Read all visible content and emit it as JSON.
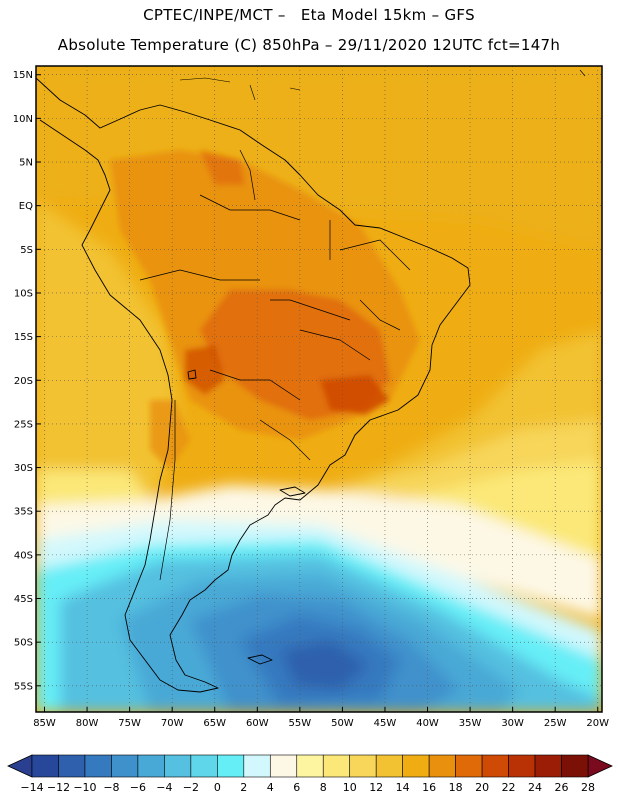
{
  "header": {
    "line1": "CPTEC/INPE/MCT –   Eta Model 15km – GFS",
    "line2": "Absolute Temperature (C) 850hPa – 29/11/2020 12UTC fct=147h"
  },
  "map": {
    "lon_range": [
      -86,
      -19.5
    ],
    "lat_range": [
      -58,
      16
    ],
    "lon_ticks": [
      {
        "value": -85,
        "label": "85W"
      },
      {
        "value": -80,
        "label": "80W"
      },
      {
        "value": -75,
        "label": "75W"
      },
      {
        "value": -70,
        "label": "70W"
      },
      {
        "value": -65,
        "label": "65W"
      },
      {
        "value": -60,
        "label": "60W"
      },
      {
        "value": -55,
        "label": "55W"
      },
      {
        "value": -50,
        "label": "50W"
      },
      {
        "value": -45,
        "label": "45W"
      },
      {
        "value": -40,
        "label": "40W"
      },
      {
        "value": -35,
        "label": "35W"
      },
      {
        "value": -30,
        "label": "30W"
      },
      {
        "value": -25,
        "label": "25W"
      },
      {
        "value": -20,
        "label": "20W"
      }
    ],
    "lat_ticks": [
      {
        "value": 15,
        "label": "15N"
      },
      {
        "value": 10,
        "label": "10N"
      },
      {
        "value": 5,
        "label": "5N"
      },
      {
        "value": 0,
        "label": "EQ"
      },
      {
        "value": -5,
        "label": "5S"
      },
      {
        "value": -10,
        "label": "10S"
      },
      {
        "value": -15,
        "label": "15S"
      },
      {
        "value": -20,
        "label": "20S"
      },
      {
        "value": -25,
        "label": "25S"
      },
      {
        "value": -30,
        "label": "30S"
      },
      {
        "value": -35,
        "label": "35S"
      },
      {
        "value": -40,
        "label": "40S"
      },
      {
        "value": -45,
        "label": "45S"
      },
      {
        "value": -50,
        "label": "50S"
      },
      {
        "value": -55,
        "label": "55S"
      }
    ]
  },
  "colorbar": {
    "under_color": "#2a3f8f",
    "over_color": "#7a0a1e",
    "colors": [
      "#27479b",
      "#2e60ad",
      "#3579bf",
      "#3f91cc",
      "#49a9d6",
      "#55c0e0",
      "#5fd6ea",
      "#66eef7",
      "#d2f8fd",
      "#fdf8e6",
      "#fdf5a0",
      "#fbe878",
      "#f7d65a",
      "#f2c233",
      "#efad13",
      "#e9900e",
      "#e06a08",
      "#cf4a04",
      "#b83206",
      "#9c1d06",
      "#7a1006"
    ],
    "labels": [
      "-14",
      "-12",
      "-10",
      "-8",
      "-6",
      "-4",
      "-2",
      "0",
      "2",
      "4",
      "6",
      "8",
      "10",
      "12",
      "14",
      "16",
      "18",
      "20",
      "22",
      "24",
      "26",
      "28"
    ]
  }
}
